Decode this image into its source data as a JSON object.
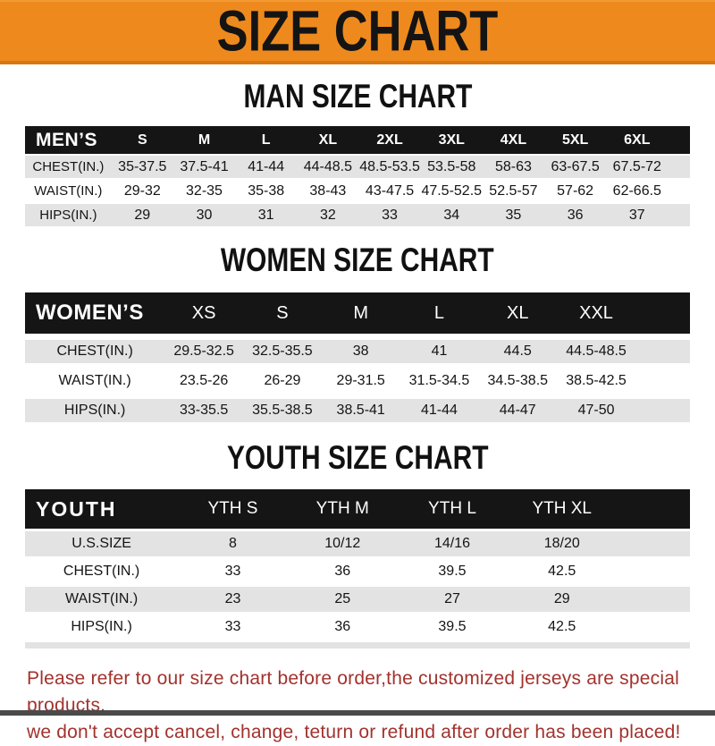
{
  "page": {
    "title": "SIZE CHART",
    "footer_line1": "Please refer to our size chart before order,the customized jerseys are special products,",
    "footer_line2": "we don't accept cancel, change, teturn or refund after order has been placed!"
  },
  "colors": {
    "banner_orange": "#ee8a1d",
    "table_band_black": "#151515",
    "row_stripe_gray": "#e3e3e3",
    "footer_red": "#a2322d"
  },
  "men": {
    "heading": "MAN SIZE CHART",
    "label": "MEN’S",
    "sizes": [
      "S",
      "M",
      "L",
      "XL",
      "2XL",
      "3XL",
      "4XL",
      "5XL",
      "6XL"
    ],
    "rows": [
      {
        "label": "CHEST(IN.)",
        "values": [
          "35-37.5",
          "37.5-41",
          "41-44",
          "44-48.5",
          "48.5-53.5",
          "53.5-58",
          "58-63",
          "63-67.5",
          "67.5-72"
        ]
      },
      {
        "label": "WAIST(IN.)",
        "values": [
          "29-32",
          "32-35",
          "35-38",
          "38-43",
          "43-47.5",
          "47.5-52.5",
          "52.5-57",
          "57-62",
          "62-66.5"
        ]
      },
      {
        "label": "HIPS(IN.)",
        "values": [
          "29",
          "30",
          "31",
          "32",
          "33",
          "34",
          "35",
          "36",
          "37"
        ]
      }
    ]
  },
  "women": {
    "heading": "WOMEN SIZE CHART",
    "label": "WOMEN’S",
    "sizes": [
      "XS",
      "S",
      "M",
      "L",
      "XL",
      "XXL"
    ],
    "rows": [
      {
        "label": "CHEST(IN.)",
        "values": [
          "29.5-32.5",
          "32.5-35.5",
          "38",
          "41",
          "44.5",
          "44.5-48.5"
        ]
      },
      {
        "label": "WAIST(IN.)",
        "values": [
          "23.5-26",
          "26-29",
          "29-31.5",
          "31.5-34.5",
          "34.5-38.5",
          "38.5-42.5"
        ]
      },
      {
        "label": "HIPS(IN.)",
        "values": [
          "33-35.5",
          "35.5-38.5",
          "38.5-41",
          "41-44",
          "44-47",
          "47-50"
        ]
      }
    ]
  },
  "youth": {
    "heading": "YOUTH SIZE CHART",
    "label": "YOUTH",
    "sizes": [
      "YTH S",
      "YTH M",
      "YTH L",
      "YTH XL"
    ],
    "rows": [
      {
        "label": "U.S.SIZE",
        "values": [
          "8",
          "10/12",
          "14/16",
          "18/20"
        ]
      },
      {
        "label": "CHEST(IN.)",
        "values": [
          "33",
          "36",
          "39.5",
          "42.5"
        ]
      },
      {
        "label": "WAIST(IN.)",
        "values": [
          "23",
          "25",
          "27",
          "29"
        ]
      },
      {
        "label": "HIPS(IN.)",
        "values": [
          "33",
          "36",
          "39.5",
          "42.5"
        ]
      }
    ]
  }
}
